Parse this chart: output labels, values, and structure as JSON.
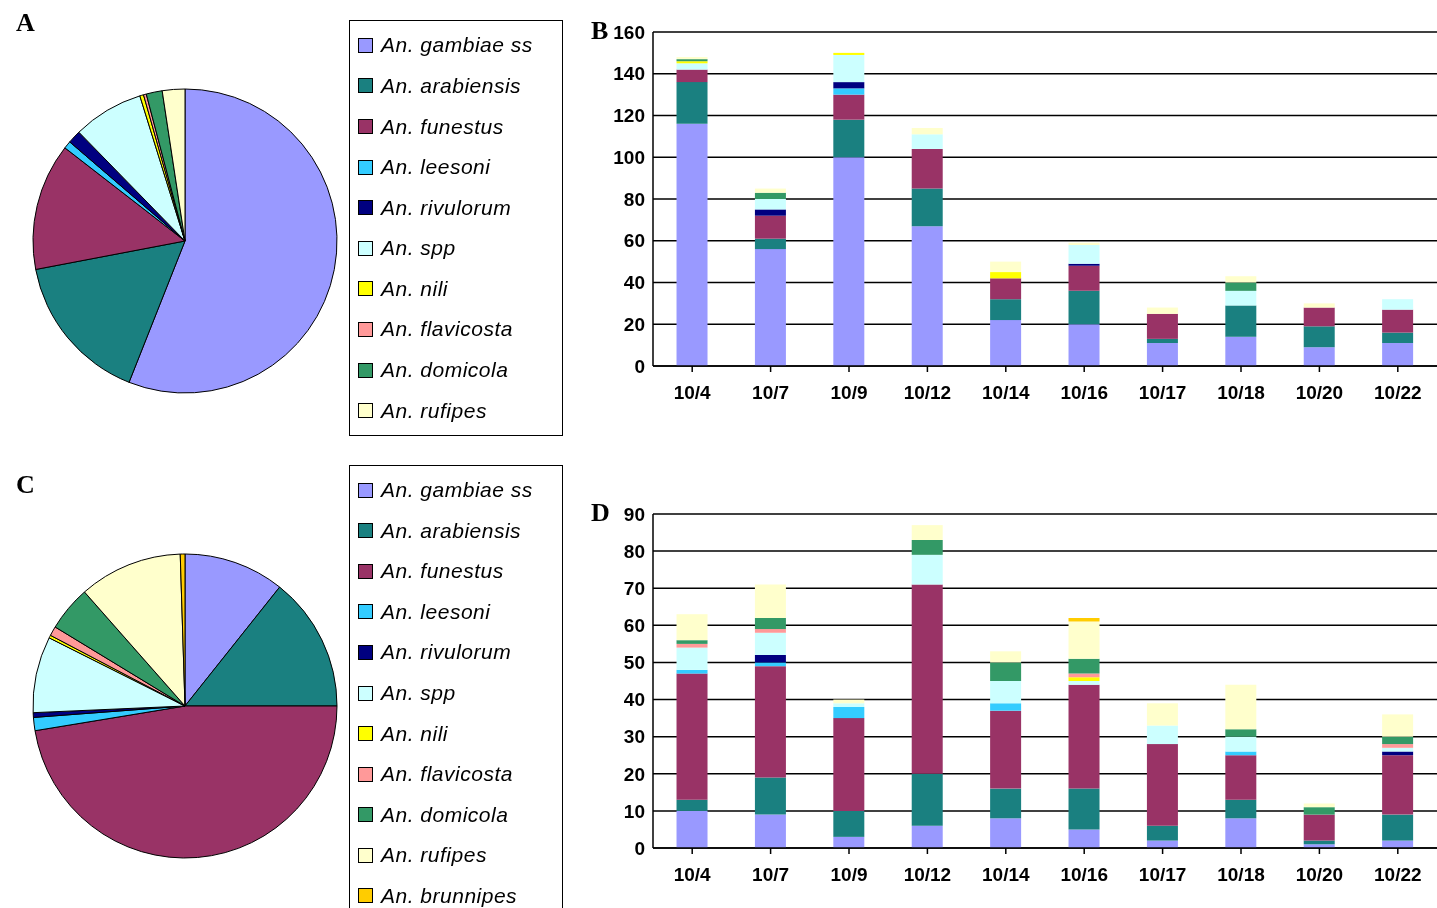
{
  "chart_data": [
    {
      "type": "pie",
      "title": "A",
      "legend": "right",
      "categories": [
        "An. gambiae ss",
        "An. arabiensis",
        "An. funestus",
        "An. leesoni",
        "An. rivulorum",
        "An. spp",
        "An. nili",
        "An. flavicosta",
        "An. domicola",
        "An. rufipes"
      ],
      "values": [
        56,
        16,
        13.5,
        0.8,
        1.4,
        7.5,
        0.4,
        0.3,
        1.7,
        2.4
      ],
      "colors": [
        "#9999ff",
        "#1a8080",
        "#993366",
        "#33ccff",
        "#000080",
        "#ccffff",
        "#ffff00",
        "#ff9999",
        "#339966",
        "#ffffcc"
      ]
    },
    {
      "type": "bar",
      "title": "B",
      "stacked": true,
      "grid": "y",
      "categories": [
        "10/4",
        "10/7",
        "10/9",
        "10/12",
        "10/14",
        "10/16",
        "10/17",
        "10/18",
        "10/20",
        "10/22"
      ],
      "ylim": [
        0,
        160
      ],
      "yticks": [
        0,
        20,
        40,
        60,
        80,
        100,
        120,
        140,
        160
      ],
      "series": [
        {
          "color": "#9999ff",
          "values": [
            116,
            56,
            100,
            67,
            22,
            20,
            11,
            14,
            9,
            11
          ]
        },
        {
          "color": "#1a8080",
          "values": [
            20,
            5,
            18,
            18,
            10,
            16,
            2,
            15,
            10,
            5
          ]
        },
        {
          "color": "#993366",
          "values": [
            6,
            11,
            12,
            19,
            10,
            12,
            12,
            0,
            9,
            11
          ]
        },
        {
          "color": "#33ccff",
          "values": [
            0,
            0,
            3,
            0,
            0,
            0,
            0,
            0,
            0,
            0
          ]
        },
        {
          "color": "#000080",
          "values": [
            0,
            3,
            3,
            0,
            0,
            1,
            0,
            0,
            0,
            0
          ]
        },
        {
          "color": "#ccffff",
          "values": [
            3,
            5,
            13,
            7,
            0,
            9,
            0,
            7,
            0,
            5
          ]
        },
        {
          "color": "#ffff00",
          "values": [
            1,
            0,
            1,
            0,
            3,
            0,
            0,
            0,
            0,
            0
          ]
        },
        {
          "color": "#ff9999",
          "values": [
            0,
            0,
            0,
            0,
            0,
            0,
            0,
            0,
            0,
            0
          ]
        },
        {
          "color": "#339966",
          "values": [
            1,
            3,
            0,
            0,
            0,
            0,
            0,
            4,
            0,
            0
          ]
        },
        {
          "color": "#ffffcc",
          "values": [
            1,
            2,
            0,
            3,
            5,
            1,
            3,
            3,
            2,
            0
          ]
        }
      ]
    },
    {
      "type": "pie",
      "title": "C",
      "legend": "right",
      "categories": [
        "An. gambiae ss",
        "An. arabiensis",
        "An. funestus",
        "An. leesoni",
        "An. rivulorum",
        "An. spp",
        "An. nili",
        "An. flavicosta",
        "An. domicola",
        "An. rufipes",
        "An. brunnipes"
      ],
      "values": [
        10.7,
        14.3,
        47.4,
        1.4,
        0.5,
        8.1,
        0.3,
        1,
        4.8,
        11,
        0.5
      ],
      "colors": [
        "#9999ff",
        "#1a8080",
        "#993366",
        "#33ccff",
        "#000080",
        "#ccffff",
        "#ffff00",
        "#ff9999",
        "#339966",
        "#ffffcc",
        "#ffcc00"
      ]
    },
    {
      "type": "bar",
      "title": "D",
      "stacked": true,
      "grid": "y",
      "categories": [
        "10/4",
        "10/7",
        "10/9",
        "10/12",
        "10/14",
        "10/16",
        "10/17",
        "10/18",
        "10/20",
        "10/22"
      ],
      "ylim": [
        0,
        90
      ],
      "yticks": [
        0,
        10,
        20,
        30,
        40,
        50,
        60,
        70,
        80,
        90
      ],
      "series": [
        {
          "color": "#9999ff",
          "values": [
            10,
            9,
            3,
            6,
            8,
            5,
            2,
            8,
            1,
            2
          ]
        },
        {
          "color": "#1a8080",
          "values": [
            3,
            10,
            7,
            14,
            8,
            11,
            4,
            5,
            1,
            7
          ]
        },
        {
          "color": "#993366",
          "values": [
            34,
            30,
            25,
            51,
            21,
            28,
            22,
            12,
            7,
            16
          ]
        },
        {
          "color": "#33ccff",
          "values": [
            1,
            1,
            3,
            0,
            2,
            0,
            0,
            1,
            0,
            0
          ]
        },
        {
          "color": "#000080",
          "values": [
            0,
            2,
            0,
            0,
            0,
            0,
            0,
            0,
            0,
            1
          ]
        },
        {
          "color": "#ccffff",
          "values": [
            6,
            6,
            1,
            8,
            6,
            1,
            5,
            4,
            0,
            1
          ]
        },
        {
          "color": "#ffff00",
          "values": [
            0,
            0,
            0,
            0,
            0,
            1,
            0,
            0,
            0,
            0
          ]
        },
        {
          "color": "#ff9999",
          "values": [
            1,
            1,
            0,
            0,
            0,
            1,
            0,
            0,
            0,
            1
          ]
        },
        {
          "color": "#339966",
          "values": [
            1,
            3,
            0,
            4,
            5,
            4,
            0,
            2,
            2,
            2
          ]
        },
        {
          "color": "#ffffcc",
          "values": [
            7,
            9,
            1,
            4,
            3,
            10,
            6,
            12,
            1,
            6
          ]
        },
        {
          "color": "#ffcc00",
          "values": [
            0,
            0,
            0,
            0,
            0,
            1,
            0,
            0,
            0,
            0
          ]
        }
      ]
    }
  ]
}
